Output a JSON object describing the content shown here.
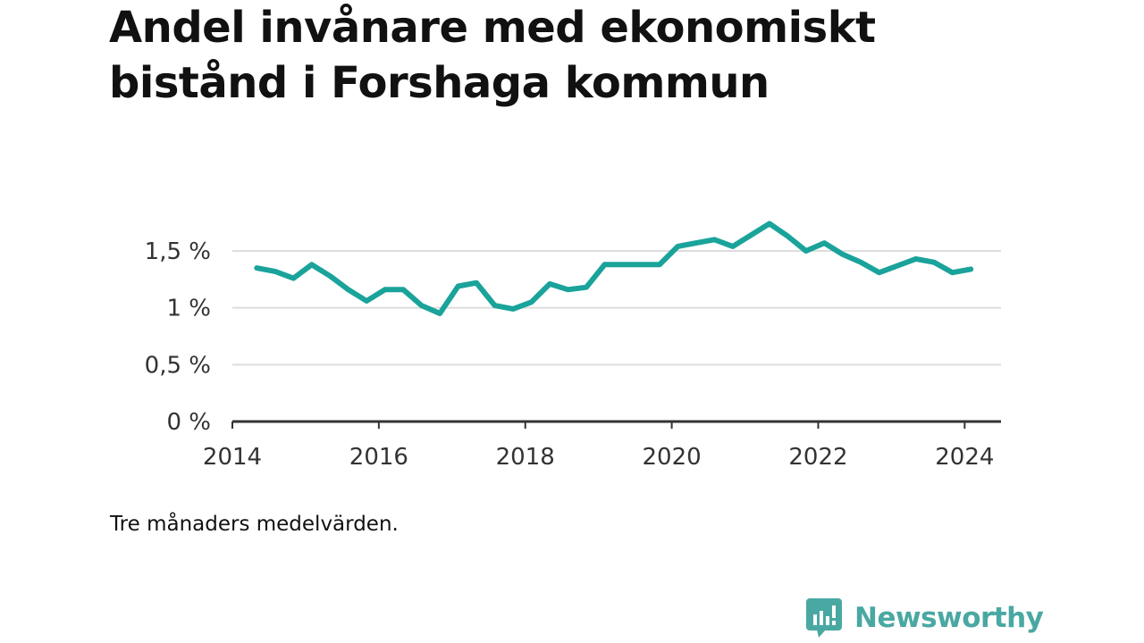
{
  "title_lines": [
    "Andel invånare med ekonomiskt",
    "bistånd i Forshaga kommun"
  ],
  "note": "Tre månaders medelvärden.",
  "brand": {
    "name": "Newsworthy",
    "icon": "newsworthy-logo-icon",
    "color": "#4aa8a2"
  },
  "colors": {
    "line": "#1aa39a",
    "grid": "#dddddd",
    "axis": "#333333"
  },
  "chart_data": {
    "type": "line",
    "title": "Andel invånare med ekonomiskt bistånd i Forshaga kommun",
    "xlabel": "",
    "ylabel": "",
    "xlim": [
      "2014-01-01",
      "2024-06-30"
    ],
    "ylim": [
      0,
      1.5
    ],
    "yticks": [
      0,
      0.5,
      1,
      1.5
    ],
    "ytick_labels": [
      "0 %",
      "0,5 %",
      "1 %",
      "1,5 %"
    ],
    "xticks": [
      "2014",
      "2016",
      "2018",
      "2020",
      "2022",
      "2024"
    ],
    "grid": true,
    "series": [
      {
        "name": "",
        "x": [
          "2014-05",
          "2014-08",
          "2014-11",
          "2015-02",
          "2015-05",
          "2015-08",
          "2015-11",
          "2016-02",
          "2016-05",
          "2016-08",
          "2016-11",
          "2017-02",
          "2017-05",
          "2017-08",
          "2017-11",
          "2018-02",
          "2018-05",
          "2018-08",
          "2018-11",
          "2019-02",
          "2019-05",
          "2019-08",
          "2019-11",
          "2020-02",
          "2020-05",
          "2020-08",
          "2020-11",
          "2021-02",
          "2021-05",
          "2021-08",
          "2021-11",
          "2022-02",
          "2022-05",
          "2022-08",
          "2022-11",
          "2023-02",
          "2023-05",
          "2023-08",
          "2023-11",
          "2024-02"
        ],
        "values": [
          1.35,
          1.32,
          1.26,
          1.38,
          1.28,
          1.16,
          1.06,
          1.16,
          1.16,
          1.02,
          0.95,
          1.19,
          1.22,
          1.02,
          0.99,
          1.05,
          1.21,
          1.16,
          1.18,
          1.38,
          1.38,
          1.38,
          1.38,
          1.54,
          1.57,
          1.6,
          1.54,
          1.64,
          1.74,
          1.63,
          1.5,
          1.57,
          1.47,
          1.4,
          1.31,
          1.37,
          1.43,
          1.4,
          1.31,
          1.34
        ]
      }
    ]
  }
}
